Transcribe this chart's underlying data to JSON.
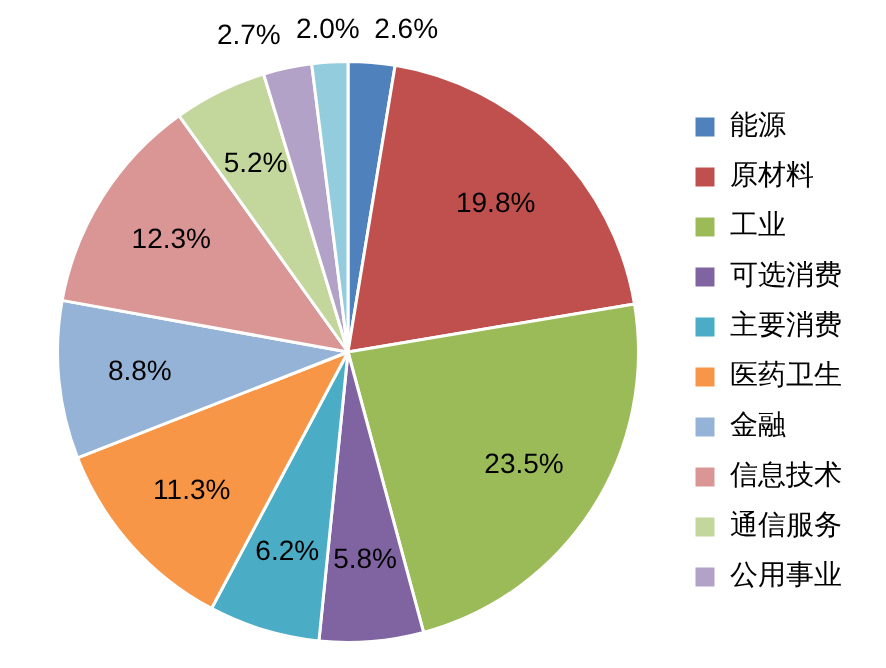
{
  "chart_data": {
    "type": "pie",
    "categories": [
      "能源",
      "原材料",
      "工业",
      "可选消费",
      "主要消费",
      "医药卫生",
      "金融",
      "信息技术",
      "通信服务",
      "公用事业",
      null
    ],
    "values": [
      2.6,
      19.8,
      23.5,
      5.8,
      6.2,
      11.3,
      8.8,
      12.3,
      5.2,
      2.7,
      2.0
    ],
    "colors": [
      "#4f81bd",
      "#c0504d",
      "#9bbb59",
      "#8064a2",
      "#4bacc6",
      "#f79646",
      "#95b3d7",
      "#d99694",
      "#c3d69b",
      "#b3a2c7",
      "#93cddd"
    ],
    "value_labels": [
      "2.6%",
      "19.8%",
      "23.5%",
      "5.8%",
      "6.2%",
      "11.3%",
      "8.8%",
      "12.3%",
      "5.2%",
      "2.7%",
      "2.0%"
    ],
    "legend": "right"
  }
}
